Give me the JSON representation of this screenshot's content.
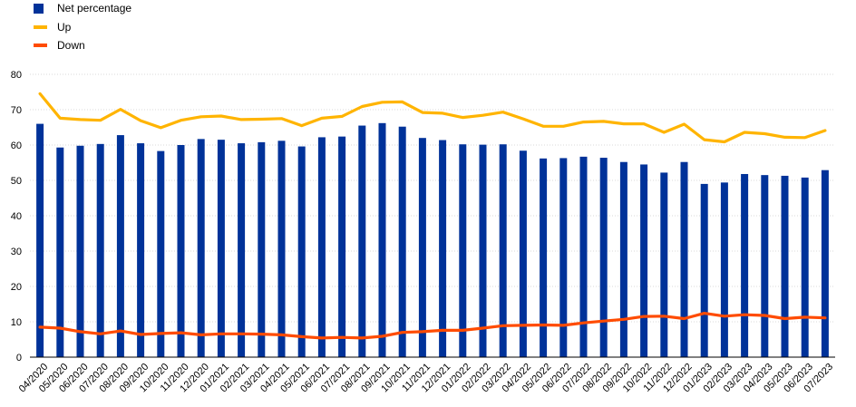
{
  "chart_data": {
    "type": "bar",
    "title": "",
    "xlabel": "",
    "ylabel": "",
    "ylim": [
      0,
      80
    ],
    "yticks": [
      0,
      10,
      20,
      30,
      40,
      50,
      60,
      70,
      80
    ],
    "grid": "horizontal",
    "legend_position": "top-left",
    "categories": [
      "04/2020",
      "05/2020",
      "06/2020",
      "07/2020",
      "08/2020",
      "09/2020",
      "10/2020",
      "11/2020",
      "12/2020",
      "01/2021",
      "02/2021",
      "03/2021",
      "04/2021",
      "05/2021",
      "06/2021",
      "07/2021",
      "08/2021",
      "09/2021",
      "10/2021",
      "11/2021",
      "12/2021",
      "01/2022",
      "02/2022",
      "03/2022",
      "04/2022",
      "05/2022",
      "06/2022",
      "07/2022",
      "08/2022",
      "09/2022",
      "10/2022",
      "11/2022",
      "12/2022",
      "01/2023",
      "02/2023",
      "03/2023",
      "04/2023",
      "05/2023",
      "06/2023",
      "07/2023"
    ],
    "series": [
      {
        "name": "Net percentage",
        "kind": "bar",
        "color": "#003299",
        "values": [
          66,
          59.3,
          59.8,
          60.3,
          62.8,
          60.5,
          58.3,
          60,
          61.7,
          61.5,
          60.5,
          60.8,
          61.2,
          59.6,
          62.2,
          62.4,
          65.5,
          66.2,
          65.2,
          62,
          61.4,
          60.2,
          60.1,
          60.2,
          58.4,
          56.2,
          56.3,
          56.7,
          56.4,
          55.2,
          54.5,
          52.2,
          55.2,
          49,
          49.4,
          51.8,
          51.5,
          51.3,
          50.8,
          52.9
        ]
      },
      {
        "name": "Up",
        "kind": "line",
        "color": "#FFB400",
        "values": [
          74.5,
          67.6,
          67.2,
          67,
          70.1,
          66.9,
          64.9,
          67,
          68,
          68.2,
          67.2,
          67.3,
          67.5,
          65.5,
          67.6,
          68.1,
          70.9,
          72.1,
          72.2,
          69.2,
          69,
          67.8,
          68.4,
          69.3,
          67.4,
          65.3,
          65.3,
          66.5,
          66.7,
          66,
          66,
          63.6,
          65.9,
          61.5,
          60.9,
          63.6,
          63.2,
          62.2,
          62.1,
          64.1
        ]
      },
      {
        "name": "Down",
        "kind": "line",
        "color": "#FF4B00",
        "values": [
          8.5,
          8.2,
          7.2,
          6.6,
          7.4,
          6.4,
          6.7,
          6.9,
          6.3,
          6.6,
          6.6,
          6.5,
          6.3,
          5.8,
          5.4,
          5.6,
          5.4,
          5.9,
          7,
          7.2,
          7.6,
          7.6,
          8.2,
          8.9,
          9,
          9.1,
          9,
          9.7,
          10.2,
          10.7,
          11.5,
          11.6,
          10.9,
          12.4,
          11.6,
          12,
          11.8,
          10.9,
          11.3,
          11.1
        ]
      }
    ]
  }
}
